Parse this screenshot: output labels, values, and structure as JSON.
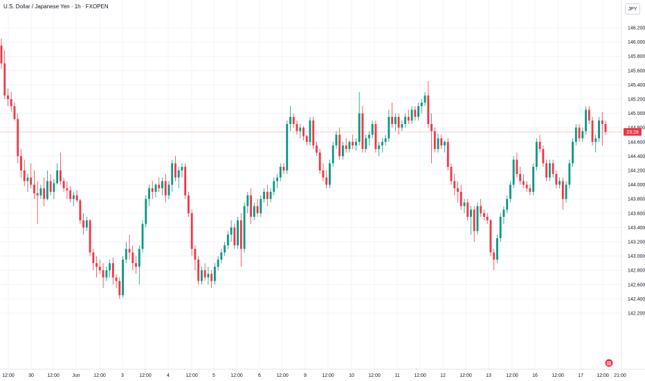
{
  "header": {
    "title": "U.S. Dollar / Japanese Yen · 1h · FXOPEN",
    "currency": "JPY"
  },
  "current": {
    "label": "23:28",
    "price": 144.74,
    "color": "#f23645"
  },
  "colors": {
    "up": "#089981",
    "down": "#f23645",
    "grid": "#f0f3fa",
    "axis": "#131722"
  },
  "chart_data": {
    "type": "candlestick",
    "ylim": [
      142.1,
      146.3
    ],
    "yticks": [
      "146.200",
      "146.000",
      "145.800",
      "145.600",
      "145.400",
      "145.200",
      "145.000",
      "144.800",
      "144.600",
      "144.400",
      "144.200",
      "144.000",
      "143.800",
      "143.600",
      "143.400",
      "143.200",
      "143.000",
      "142.800",
      "142.600",
      "142.400",
      "142.200"
    ],
    "xticks": [
      "12:00",
      "30",
      "12:00",
      "Jun",
      "12:00",
      "3",
      "12:00",
      "4",
      "12:00",
      "5",
      "12:00",
      "6",
      "12:00",
      "9",
      "12:00",
      "10",
      "12:00",
      "11",
      "12:00",
      "12",
      "12:00",
      "13",
      "12:00",
      "16",
      "12:00",
      "17",
      "12:00",
      "21:00"
    ],
    "candles": [
      [
        145.95,
        146.05,
        145.62,
        145.7
      ],
      [
        145.7,
        145.88,
        145.2,
        145.25
      ],
      [
        145.25,
        145.35,
        145.1,
        145.2
      ],
      [
        145.2,
        145.3,
        145.02,
        145.1
      ],
      [
        145.1,
        145.15,
        144.9,
        144.92
      ],
      [
        144.92,
        145.0,
        144.3,
        144.4
      ],
      [
        144.4,
        144.5,
        144.1,
        144.2
      ],
      [
        144.2,
        144.35,
        143.98,
        144.05
      ],
      [
        144.05,
        144.15,
        143.9,
        144.1
      ],
      [
        144.1,
        144.3,
        143.95,
        144.0
      ],
      [
        144.0,
        144.2,
        143.8,
        143.88
      ],
      [
        143.88,
        144.05,
        143.45,
        143.85
      ],
      [
        143.85,
        144.0,
        143.8,
        143.95
      ],
      [
        143.95,
        144.1,
        143.7,
        143.8
      ],
      [
        143.8,
        144.2,
        143.78,
        144.05
      ],
      [
        144.05,
        144.15,
        143.85,
        143.9
      ],
      [
        143.9,
        144.08,
        143.8,
        144.02
      ],
      [
        144.02,
        144.3,
        144.0,
        144.2
      ],
      [
        144.2,
        144.45,
        144.0,
        144.05
      ],
      [
        144.05,
        144.1,
        143.9,
        143.95
      ],
      [
        143.95,
        144.05,
        143.8,
        143.92
      ],
      [
        143.92,
        143.98,
        143.75,
        143.8
      ],
      [
        143.8,
        143.9,
        143.7,
        143.85
      ],
      [
        143.85,
        143.92,
        143.75,
        143.78
      ],
      [
        143.78,
        143.8,
        143.45,
        143.5
      ],
      [
        143.5,
        143.6,
        143.3,
        143.4
      ],
      [
        143.4,
        143.55,
        143.35,
        143.5
      ],
      [
        143.5,
        143.52,
        143.0,
        143.05
      ],
      [
        143.05,
        143.1,
        142.8,
        142.9
      ],
      [
        142.9,
        143.0,
        142.7,
        142.85
      ],
      [
        142.85,
        142.95,
        142.75,
        142.8
      ],
      [
        142.8,
        142.9,
        142.55,
        142.7
      ],
      [
        142.7,
        142.85,
        142.65,
        142.8
      ],
      [
        142.8,
        142.95,
        142.7,
        142.9
      ],
      [
        142.9,
        142.98,
        142.6,
        142.7
      ],
      [
        142.7,
        142.75,
        142.55,
        142.65
      ],
      [
        142.65,
        142.7,
        142.4,
        142.45
      ],
      [
        142.45,
        143.0,
        142.42,
        142.95
      ],
      [
        142.95,
        143.2,
        142.9,
        143.1
      ],
      [
        143.1,
        143.3,
        142.95,
        143.05
      ],
      [
        143.05,
        143.15,
        142.8,
        142.9
      ],
      [
        142.9,
        143.0,
        142.75,
        142.85
      ],
      [
        142.85,
        143.15,
        142.6,
        143.1
      ],
      [
        143.1,
        143.5,
        143.05,
        143.45
      ],
      [
        143.45,
        143.85,
        143.4,
        143.8
      ],
      [
        143.8,
        144.0,
        143.7,
        143.95
      ],
      [
        143.95,
        144.05,
        143.8,
        143.9
      ],
      [
        143.9,
        144.02,
        143.82,
        144.0
      ],
      [
        144.0,
        144.1,
        143.9,
        143.95
      ],
      [
        143.95,
        144.1,
        143.85,
        144.05
      ],
      [
        144.05,
        144.15,
        143.75,
        143.85
      ],
      [
        143.85,
        144.05,
        143.8,
        144.0
      ],
      [
        144.0,
        144.35,
        143.9,
        144.3
      ],
      [
        144.3,
        144.4,
        144.05,
        144.1
      ],
      [
        144.1,
        144.25,
        143.95,
        144.2
      ],
      [
        144.2,
        144.3,
        144.1,
        144.25
      ],
      [
        144.25,
        144.3,
        143.8,
        143.85
      ],
      [
        143.85,
        143.9,
        143.55,
        143.6
      ],
      [
        143.6,
        143.65,
        143.0,
        143.1
      ],
      [
        143.1,
        143.15,
        142.8,
        142.95
      ],
      [
        142.95,
        143.0,
        142.6,
        142.65
      ],
      [
        142.65,
        142.85,
        142.6,
        142.8
      ],
      [
        142.8,
        142.9,
        142.65,
        142.7
      ],
      [
        142.7,
        142.85,
        142.6,
        142.75
      ],
      [
        142.75,
        142.8,
        142.55,
        142.65
      ],
      [
        142.65,
        142.9,
        142.6,
        142.85
      ],
      [
        142.85,
        143.0,
        142.8,
        142.95
      ],
      [
        142.95,
        143.1,
        142.9,
        143.05
      ],
      [
        143.05,
        143.2,
        143.0,
        143.15
      ],
      [
        143.15,
        143.35,
        143.1,
        143.3
      ],
      [
        143.3,
        143.5,
        143.2,
        143.4
      ],
      [
        143.4,
        143.45,
        143.1,
        143.15
      ],
      [
        143.15,
        143.55,
        143.1,
        143.5
      ],
      [
        143.5,
        143.6,
        142.85,
        143.1
      ],
      [
        143.1,
        143.75,
        143.05,
        143.7
      ],
      [
        143.7,
        143.9,
        143.6,
        143.85
      ],
      [
        143.85,
        143.95,
        143.45,
        143.55
      ],
      [
        143.55,
        143.75,
        143.5,
        143.7
      ],
      [
        143.7,
        143.8,
        143.55,
        143.6
      ],
      [
        143.6,
        143.85,
        143.55,
        143.8
      ],
      [
        143.8,
        143.95,
        143.75,
        143.9
      ],
      [
        143.9,
        144.0,
        143.7,
        143.8
      ],
      [
        143.8,
        143.95,
        143.75,
        143.9
      ],
      [
        143.9,
        144.1,
        143.85,
        144.05
      ],
      [
        144.05,
        144.15,
        143.95,
        144.1
      ],
      [
        144.1,
        144.3,
        144.05,
        144.25
      ],
      [
        144.25,
        144.3,
        144.15,
        144.2
      ],
      [
        144.2,
        144.9,
        144.15,
        144.85
      ],
      [
        144.85,
        145.1,
        144.75,
        144.95
      ],
      [
        144.95,
        145.0,
        144.8,
        144.85
      ],
      [
        144.85,
        144.9,
        144.7,
        144.75
      ],
      [
        144.75,
        144.85,
        144.65,
        144.8
      ],
      [
        144.8,
        144.82,
        144.62,
        144.68
      ],
      [
        144.68,
        144.7,
        144.55,
        144.6
      ],
      [
        144.6,
        144.95,
        144.55,
        144.9
      ],
      [
        144.9,
        144.95,
        144.5,
        144.55
      ],
      [
        144.55,
        144.6,
        144.4,
        144.45
      ],
      [
        144.45,
        144.5,
        144.15,
        144.2
      ],
      [
        144.2,
        144.3,
        144.05,
        144.1
      ],
      [
        144.1,
        144.2,
        143.95,
        144.0
      ],
      [
        144.0,
        144.35,
        143.95,
        144.3
      ],
      [
        144.3,
        144.6,
        144.25,
        144.55
      ],
      [
        144.55,
        144.75,
        144.5,
        144.7
      ],
      [
        144.7,
        144.8,
        144.35,
        144.4
      ],
      [
        144.4,
        144.6,
        144.35,
        144.55
      ],
      [
        144.55,
        144.65,
        144.45,
        144.5
      ],
      [
        144.5,
        144.62,
        144.45,
        144.6
      ],
      [
        144.6,
        144.7,
        144.5,
        144.55
      ],
      [
        144.55,
        144.65,
        144.48,
        144.6
      ],
      [
        144.6,
        145.3,
        144.55,
        145.0
      ],
      [
        145.0,
        145.1,
        144.45,
        144.5
      ],
      [
        144.5,
        144.7,
        144.45,
        144.65
      ],
      [
        144.65,
        144.75,
        144.55,
        144.7
      ],
      [
        144.7,
        144.9,
        144.65,
        144.85
      ],
      [
        144.85,
        144.9,
        144.45,
        144.5
      ],
      [
        144.5,
        144.6,
        144.4,
        144.55
      ],
      [
        144.55,
        144.65,
        144.45,
        144.6
      ],
      [
        144.6,
        144.7,
        144.55,
        144.65
      ],
      [
        144.65,
        145.05,
        144.6,
        144.95
      ],
      [
        144.95,
        145.15,
        144.8,
        144.85
      ],
      [
        144.85,
        145.0,
        144.75,
        144.95
      ],
      [
        144.95,
        145.0,
        144.7,
        144.8
      ],
      [
        144.8,
        144.9,
        144.75,
        144.85
      ],
      [
        144.85,
        145.0,
        144.8,
        144.95
      ],
      [
        144.95,
        145.05,
        144.85,
        144.9
      ],
      [
        144.9,
        145.1,
        144.85,
        145.05
      ],
      [
        145.05,
        145.1,
        144.9,
        144.95
      ],
      [
        144.95,
        145.15,
        144.9,
        145.1
      ],
      [
        145.1,
        145.2,
        145.0,
        145.15
      ],
      [
        145.15,
        145.3,
        145.1,
        145.25
      ],
      [
        145.25,
        145.45,
        144.8,
        144.85
      ],
      [
        144.85,
        145.0,
        144.3,
        144.75
      ],
      [
        144.75,
        144.8,
        144.45,
        144.5
      ],
      [
        144.5,
        144.72,
        144.45,
        144.65
      ],
      [
        144.65,
        144.7,
        144.5,
        144.55
      ],
      [
        144.55,
        144.62,
        144.45,
        144.6
      ],
      [
        144.6,
        144.65,
        144.2,
        144.25
      ],
      [
        144.25,
        144.3,
        144.0,
        144.05
      ],
      [
        144.05,
        144.15,
        143.85,
        143.95
      ],
      [
        143.95,
        144.05,
        143.75,
        143.9
      ],
      [
        143.9,
        144.0,
        143.65,
        143.7
      ],
      [
        143.7,
        143.8,
        143.6,
        143.75
      ],
      [
        143.75,
        143.8,
        143.5,
        143.55
      ],
      [
        143.55,
        143.7,
        143.3,
        143.65
      ],
      [
        143.65,
        143.7,
        143.2,
        143.35
      ],
      [
        143.35,
        143.75,
        143.3,
        143.7
      ],
      [
        143.7,
        143.8,
        143.55,
        143.6
      ],
      [
        143.6,
        143.65,
        143.5,
        143.55
      ],
      [
        143.55,
        143.6,
        143.45,
        143.5
      ],
      [
        143.5,
        143.52,
        143.0,
        143.05
      ],
      [
        143.05,
        143.1,
        142.8,
        142.95
      ],
      [
        142.95,
        143.3,
        142.9,
        143.25
      ],
      [
        143.25,
        143.6,
        143.2,
        143.55
      ],
      [
        143.55,
        143.7,
        143.45,
        143.65
      ],
      [
        143.65,
        143.85,
        143.6,
        143.8
      ],
      [
        143.8,
        144.05,
        143.75,
        144.0
      ],
      [
        144.0,
        144.4,
        143.95,
        144.35
      ],
      [
        144.35,
        144.45,
        144.1,
        144.15
      ],
      [
        144.15,
        144.25,
        144.0,
        144.05
      ],
      [
        144.05,
        144.15,
        143.95,
        144.0
      ],
      [
        144.0,
        144.05,
        143.9,
        143.95
      ],
      [
        143.95,
        144.0,
        143.85,
        143.9
      ],
      [
        143.9,
        144.3,
        143.85,
        144.25
      ],
      [
        144.25,
        144.65,
        144.2,
        144.6
      ],
      [
        144.6,
        144.7,
        144.45,
        144.5
      ],
      [
        144.5,
        144.55,
        144.25,
        144.3
      ],
      [
        144.3,
        144.35,
        144.05,
        144.1
      ],
      [
        144.1,
        144.35,
        144.05,
        144.3
      ],
      [
        144.3,
        144.35,
        144.1,
        144.15
      ],
      [
        144.15,
        144.2,
        143.95,
        144.0
      ],
      [
        144.0,
        144.1,
        143.95,
        144.05
      ],
      [
        144.05,
        144.1,
        143.65,
        143.8
      ],
      [
        143.8,
        144.05,
        143.75,
        144.0
      ],
      [
        144.0,
        144.35,
        143.95,
        144.3
      ],
      [
        144.3,
        144.65,
        144.25,
        144.6
      ],
      [
        144.6,
        144.85,
        144.55,
        144.8
      ],
      [
        144.8,
        144.85,
        144.6,
        144.65
      ],
      [
        144.65,
        144.8,
        144.6,
        144.75
      ],
      [
        144.75,
        145.1,
        144.7,
        145.05
      ],
      [
        145.05,
        145.1,
        144.85,
        144.9
      ],
      [
        144.9,
        144.95,
        144.55,
        144.6
      ],
      [
        144.6,
        144.7,
        144.45,
        144.65
      ],
      [
        144.65,
        144.95,
        144.6,
        144.9
      ],
      [
        144.9,
        145.02,
        144.55,
        144.85
      ],
      [
        144.85,
        144.9,
        144.7,
        144.74
      ]
    ]
  }
}
